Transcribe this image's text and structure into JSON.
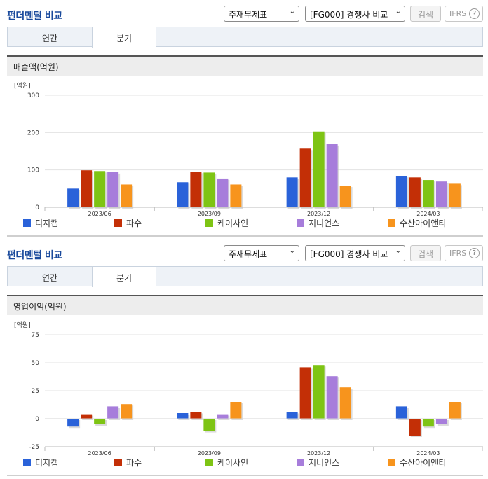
{
  "colors": {
    "title": "#1a4a9c",
    "series": [
      "#2a62d9",
      "#c32f06",
      "#7ec414",
      "#a77ddb",
      "#f7941d"
    ]
  },
  "panels": [
    {
      "title": "펀더멘털 비교",
      "select1": "주재무제표",
      "select2": "[FG000] 경쟁사 비교",
      "search_label": "검색",
      "ifrs_label": "IFRS",
      "help_icon": "?",
      "tabs": [
        "연간",
        "분기"
      ],
      "subtitle": "매출액(억원)"
    },
    {
      "title": "펀더멘털 비교",
      "select1": "주재무제표",
      "select2": "[FG000] 경쟁사 비교",
      "search_label": "검색",
      "ifrs_label": "IFRS",
      "help_icon": "?",
      "tabs": [
        "연간",
        "분기"
      ],
      "subtitle": "영업이익(억원)"
    }
  ],
  "chart_data": [
    {
      "type": "bar",
      "unit_label": "[억원]",
      "categories": [
        "2023/06",
        "2023/09",
        "2023/12",
        "2024/03"
      ],
      "ylim": [
        0,
        300
      ],
      "yticks": [
        0,
        100,
        200,
        300
      ],
      "grid": true,
      "legend": "bottom",
      "series": [
        {
          "name": "디지캡",
          "values": [
            50,
            67,
            80,
            84
          ]
        },
        {
          "name": "파수",
          "values": [
            99,
            95,
            157,
            80
          ]
        },
        {
          "name": "케이사인",
          "values": [
            97,
            93,
            203,
            73
          ]
        },
        {
          "name": "지니언스",
          "values": [
            94,
            77,
            169,
            69
          ]
        },
        {
          "name": "수산아이앤티",
          "values": [
            61,
            61,
            58,
            63
          ]
        }
      ]
    },
    {
      "type": "bar",
      "unit_label": "[억원]",
      "categories": [
        "2023/06",
        "2023/09",
        "2023/12",
        "2024/03"
      ],
      "ylim": [
        -25,
        75
      ],
      "yticks": [
        -25,
        0,
        25,
        50,
        75
      ],
      "grid": true,
      "legend": "bottom",
      "series": [
        {
          "name": "디지캡",
          "values": [
            -7,
            5,
            6,
            11
          ]
        },
        {
          "name": "파수",
          "values": [
            4,
            6,
            46,
            -15
          ]
        },
        {
          "name": "케이사인",
          "values": [
            -5,
            -11,
            48,
            -7
          ]
        },
        {
          "name": "지니언스",
          "values": [
            11,
            4,
            38,
            -5
          ]
        },
        {
          "name": "수산아이앤티",
          "values": [
            13,
            15,
            28,
            15
          ]
        }
      ]
    }
  ]
}
